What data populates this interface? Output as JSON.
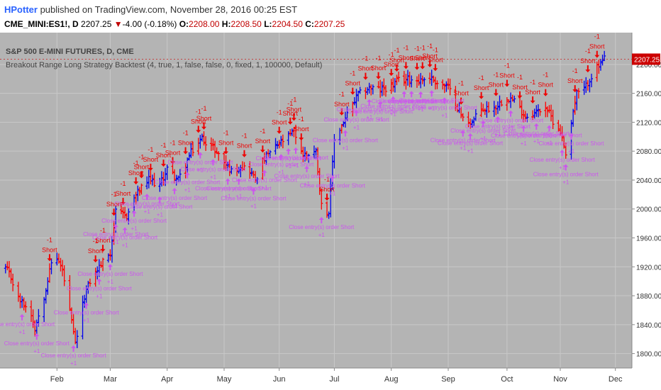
{
  "header": {
    "author": "HPotter",
    "published_text": "published on TradingView.com, November 28, 2016 00:25 EST",
    "symbol": "CME_MINI:ES1!, D",
    "last": "2207.25",
    "change": "-4.00 (-0.18%)",
    "o_label": "O:",
    "o_value": "2208.00",
    "h_label": "H:",
    "h_value": "2208.50",
    "l_label": "L:",
    "l_value": "2204.50",
    "c_label": "C:",
    "c_value": "2207.25"
  },
  "colors": {
    "background": "#b4b4b4",
    "grid": "#c8c8c8",
    "bar_up": "#0000ee",
    "bar_down": "#ff0000",
    "short_marker": "#ee0000",
    "close_marker": "#cc55ee",
    "price_tag": "#cc0000"
  },
  "chart_data": {
    "type": "ohlc-bars",
    "title": "S&P 500 E-MINI FUTURES, D, CME",
    "subtitle": "Breakout Range Long Strategy Backtest (4, true, 1, false, false, 0, fixed, 1, 100000, Default)",
    "ylim": [
      1780,
      2244
    ],
    "y_ticks": [
      1800,
      1840,
      1880,
      1920,
      1960,
      2000,
      2040,
      2080,
      2120,
      2160,
      2200
    ],
    "y_tick_labels": [
      "1800.00",
      "1840.00",
      "1880.00",
      "1920.00",
      "1960.00",
      "2000.00",
      "2040.00",
      "2080.00",
      "2120.00",
      "2160.00",
      "2200.00"
    ],
    "x_labels": [
      "Feb",
      "Mar",
      "Apr",
      "May",
      "Jun",
      "Jul",
      "Aug",
      "Sep",
      "Oct",
      "Nov",
      "Dec"
    ],
    "x_label_dates": [
      "2016-02-01",
      "2016-03-01",
      "2016-04-01",
      "2016-05-02",
      "2016-06-01",
      "2016-07-01",
      "2016-08-01",
      "2016-09-01",
      "2016-10-03",
      "2016-11-01",
      "2016-12-01"
    ],
    "last_price": 2207.25,
    "last_price_label": "2207.25",
    "short_label": "Short",
    "short_qty": "-1",
    "close_label": "Close entry(s) order Short",
    "close_qty": "+1",
    "close_value_estimate": 2026,
    "ohlc_path": [
      [
        "2016-01-04",
        1918
      ],
      [
        "2016-01-07",
        1905
      ],
      [
        "2016-01-11",
        1876
      ],
      [
        "2016-01-14",
        1868
      ],
      [
        "2016-01-18",
        1855
      ],
      [
        "2016-01-20",
        1835
      ],
      [
        "2016-01-25",
        1880
      ],
      [
        "2016-01-29",
        1925
      ],
      [
        "2016-02-01",
        1932
      ],
      [
        "2016-02-04",
        1915
      ],
      [
        "2016-02-08",
        1858
      ],
      [
        "2016-02-11",
        1812
      ],
      [
        "2016-02-16",
        1880
      ],
      [
        "2016-02-19",
        1900
      ],
      [
        "2016-02-24",
        1920
      ],
      [
        "2016-03-01",
        1940
      ],
      [
        "2016-03-04",
        1995
      ],
      [
        "2016-03-10",
        1990
      ],
      [
        "2016-03-15",
        2020
      ],
      [
        "2016-03-22",
        2040
      ],
      [
        "2016-03-28",
        2033
      ],
      [
        "2016-04-01",
        2056
      ],
      [
        "2016-04-07",
        2040
      ],
      [
        "2016-04-14",
        2078
      ],
      [
        "2016-04-20",
        2098
      ],
      [
        "2016-04-26",
        2085
      ],
      [
        "2016-05-02",
        2065
      ],
      [
        "2016-05-06",
        2052
      ],
      [
        "2016-05-11",
        2060
      ],
      [
        "2016-05-16",
        2054
      ],
      [
        "2016-05-19",
        2040
      ],
      [
        "2016-05-24",
        2070
      ],
      [
        "2016-05-31",
        2088
      ],
      [
        "2016-06-06",
        2100
      ],
      [
        "2016-06-09",
        2108
      ],
      [
        "2016-06-14",
        2074
      ],
      [
        "2016-06-21",
        2080
      ],
      [
        "2016-06-24",
        2005
      ],
      [
        "2016-06-28",
        1995
      ],
      [
        "2016-07-01",
        2096
      ],
      [
        "2016-07-08",
        2130
      ],
      [
        "2016-07-14",
        2158
      ],
      [
        "2016-07-20",
        2168
      ],
      [
        "2016-07-26",
        2165
      ],
      [
        "2016-08-01",
        2170
      ],
      [
        "2016-08-05",
        2178
      ],
      [
        "2016-08-10",
        2180
      ],
      [
        "2016-08-16",
        2178
      ],
      [
        "2016-08-22",
        2182
      ],
      [
        "2016-08-26",
        2175
      ],
      [
        "2016-09-01",
        2168
      ],
      [
        "2016-09-09",
        2125
      ],
      [
        "2016-09-14",
        2120
      ],
      [
        "2016-09-19",
        2138
      ],
      [
        "2016-09-26",
        2140
      ],
      [
        "2016-10-03",
        2155
      ],
      [
        "2016-10-07",
        2150
      ],
      [
        "2016-10-13",
        2128
      ],
      [
        "2016-10-18",
        2133
      ],
      [
        "2016-10-24",
        2142
      ],
      [
        "2016-10-28",
        2122
      ],
      [
        "2016-11-01",
        2108
      ],
      [
        "2016-11-04",
        2078
      ],
      [
        "2016-11-08",
        2135
      ],
      [
        "2016-11-10",
        2160
      ],
      [
        "2016-11-14",
        2165
      ],
      [
        "2016-11-17",
        2180
      ],
      [
        "2016-11-21",
        2195
      ],
      [
        "2016-11-25",
        2207
      ]
    ],
    "short_signals": [
      "2016-01-28",
      "2016-02-22",
      "2016-02-26",
      "2016-03-03",
      "2016-03-08",
      "2016-03-15",
      "2016-03-18",
      "2016-03-23",
      "2016-03-30",
      "2016-04-04",
      "2016-04-11",
      "2016-04-18",
      "2016-04-21",
      "2016-05-03",
      "2016-05-13",
      "2016-05-23",
      "2016-06-01",
      "2016-06-07",
      "2016-06-09",
      "2016-06-13",
      "2016-06-27",
      "2016-07-05",
      "2016-07-11",
      "2016-07-18",
      "2016-07-25",
      "2016-08-01",
      "2016-08-04",
      "2016-08-09",
      "2016-08-15",
      "2016-08-18",
      "2016-08-22",
      "2016-08-25",
      "2016-09-08",
      "2016-09-19",
      "2016-09-27",
      "2016-10-03",
      "2016-10-10",
      "2016-10-17",
      "2016-10-24",
      "2016-11-09",
      "2016-11-16",
      "2016-11-21"
    ],
    "close_signals": [
      "2016-01-13",
      "2016-01-21",
      "2016-02-10",
      "2016-02-17",
      "2016-02-24",
      "2016-03-01",
      "2016-03-04",
      "2016-03-09",
      "2016-03-14",
      "2016-03-21",
      "2016-03-28",
      "2016-04-05",
      "2016-04-12",
      "2016-04-19",
      "2016-04-26",
      "2016-05-04",
      "2016-05-10",
      "2016-05-18",
      "2016-05-24",
      "2016-06-02",
      "2016-06-06",
      "2016-06-10",
      "2016-06-16",
      "2016-06-24",
      "2016-06-30",
      "2016-07-07",
      "2016-07-13",
      "2016-07-20",
      "2016-07-26",
      "2016-08-02",
      "2016-08-08",
      "2016-08-12",
      "2016-08-17",
      "2016-08-23",
      "2016-08-30",
      "2016-09-09",
      "2016-09-13",
      "2016-09-20",
      "2016-09-28",
      "2016-10-05",
      "2016-10-12",
      "2016-10-19",
      "2016-10-26",
      "2016-11-02",
      "2016-11-04",
      "2016-11-07"
    ]
  }
}
